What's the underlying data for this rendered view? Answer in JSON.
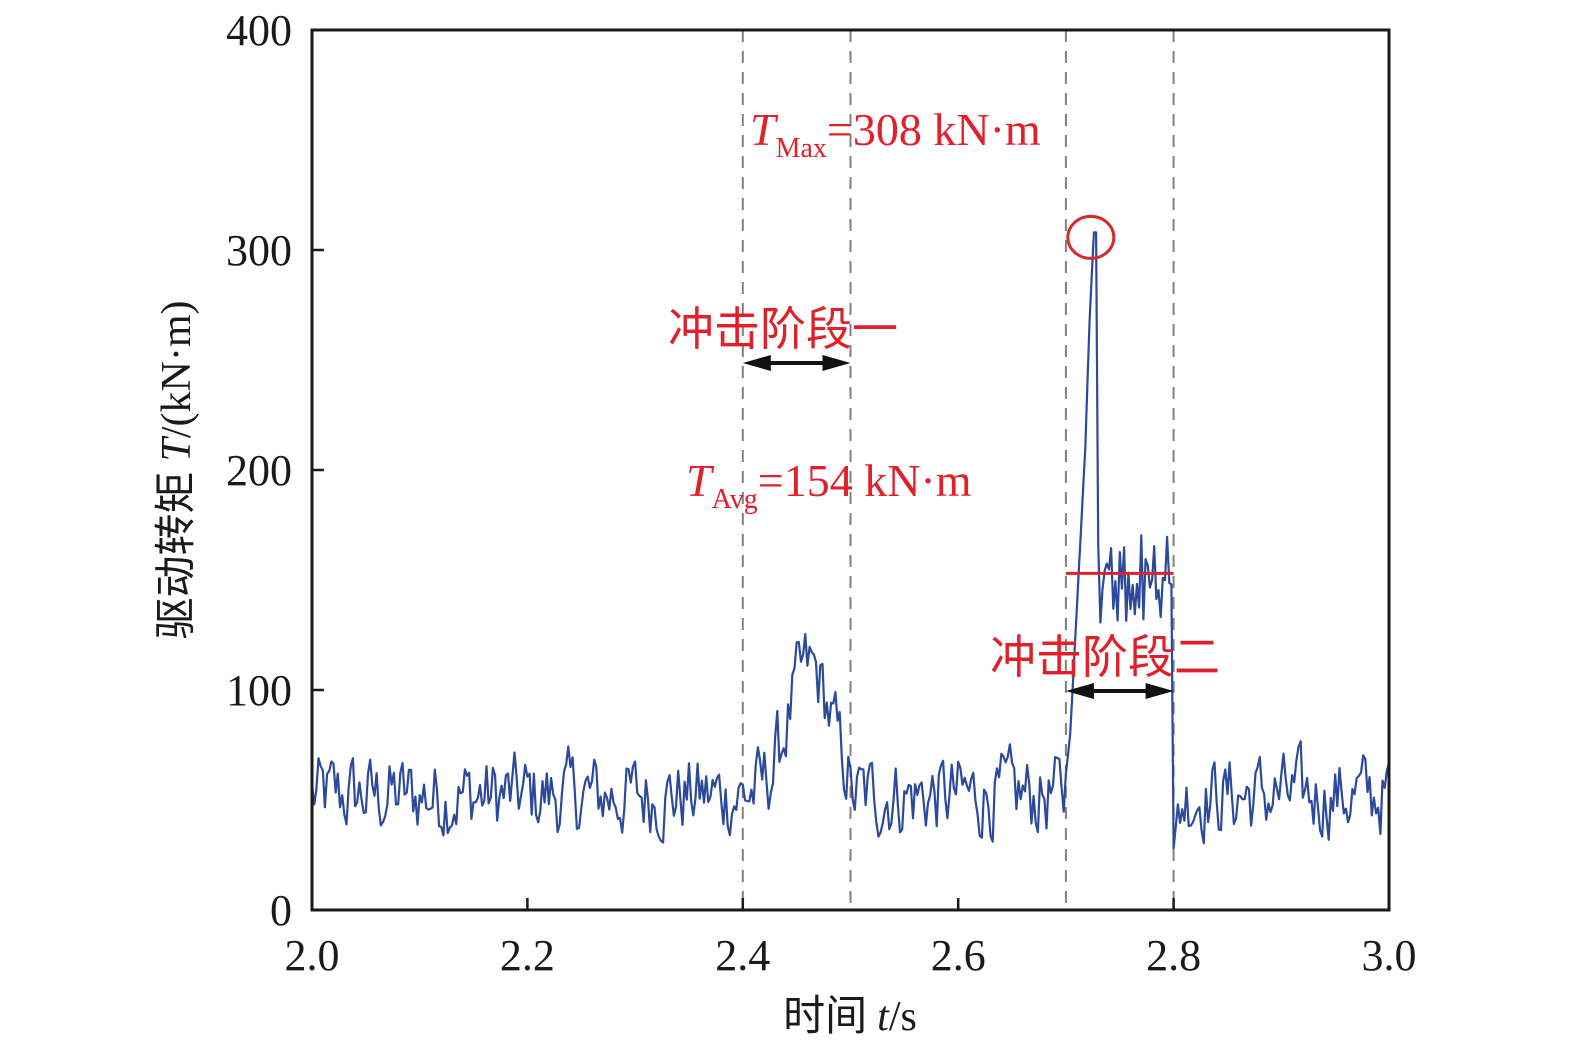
{
  "chart_data": {
    "type": "line",
    "title": "",
    "xlabel_cn": "时间",
    "xlabel_var": "t",
    "xlabel_unit": "/s",
    "ylabel_cn": "驱动转矩",
    "ylabel_var": "T",
    "ylabel_unit": "/(kN·m)",
    "xlim": [
      2.0,
      3.0
    ],
    "ylim": [
      0,
      400
    ],
    "xticks": [
      2.0,
      2.2,
      2.4,
      2.6,
      2.8,
      3.0
    ],
    "xtick_labels": [
      "2.0",
      "2.2",
      "2.4",
      "2.6",
      "2.8",
      "3.0"
    ],
    "yticks": [
      0,
      100,
      200,
      300,
      400
    ],
    "ytick_labels": [
      "0",
      "100",
      "200",
      "300",
      "400"
    ],
    "grid": false,
    "series": [
      {
        "name": "驱动转矩",
        "color": "#2b4a9b",
        "x_start": 2.0,
        "x_step": 0.002,
        "values": []
      }
    ],
    "baseline_level": 52,
    "stage1": {
      "x_start": 2.4,
      "x_end": 2.5,
      "peak": 125,
      "label": "冲击阶段一"
    },
    "stage2": {
      "x_start": 2.7,
      "x_end": 2.8,
      "peak": 308,
      "average": 154,
      "label": "冲击阶段二"
    },
    "vlines": [
      2.4,
      2.5,
      2.7,
      2.8
    ],
    "avg_line": {
      "x_start": 2.7,
      "x_end": 2.8,
      "y": 153,
      "color": "#e0202a"
    },
    "peak_marker": {
      "x": 2.725,
      "y": 308,
      "color": "#d42a2a"
    },
    "annotations": {
      "tmax": {
        "var": "T",
        "sub": "Max",
        "text": "=308 kN·m"
      },
      "tavg": {
        "var": "T",
        "sub": "Avg",
        "text": "=154 kN·m"
      }
    }
  },
  "colors": {
    "line": "#2b4a9b",
    "annotation": "#e0202a",
    "axis": "#1a1a1a",
    "vline": "#808080"
  }
}
